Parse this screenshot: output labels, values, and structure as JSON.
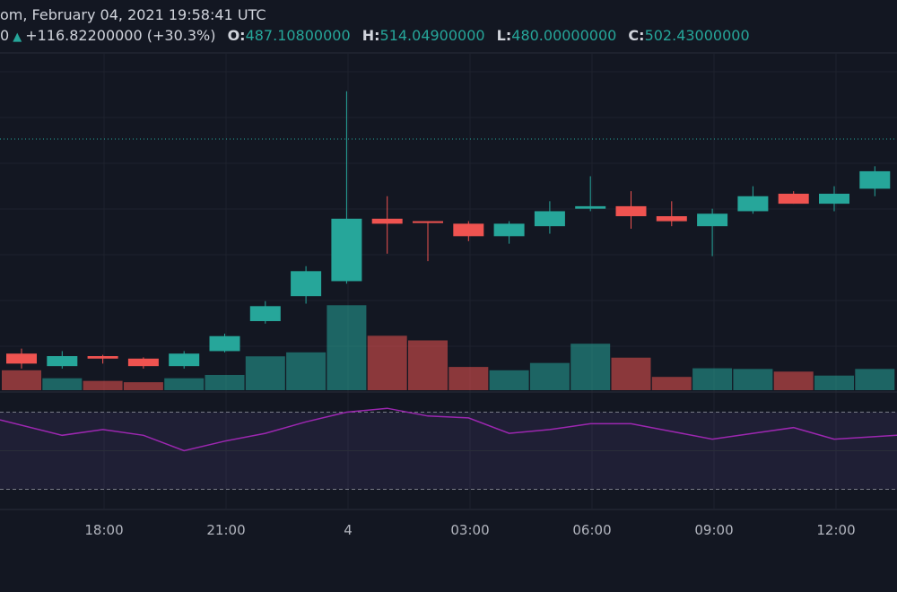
{
  "header": {
    "title_fragment": "om, February 04, 2021 19:58:41 UTC",
    "price_fragment": "0",
    "change_arrow": "▲",
    "change": "+116.82200000 (+30.3%)",
    "o_label": "O:",
    "o_value": "487.10800000",
    "h_label": "H:",
    "h_value": "514.04900000",
    "l_label": "L:",
    "l_value": "480.00000000",
    "c_label": "C:",
    "c_value": "502.43000000"
  },
  "colors": {
    "up": "#26a69a",
    "down": "#ef5350",
    "rsi": "#9c27b0",
    "background": "#131722"
  },
  "chart_data": {
    "type": "candlestick",
    "x_ticks": [
      "18:00",
      "21:00",
      "4",
      "03:00",
      "06:00",
      "09:00",
      "12:00"
    ],
    "candles": [
      {
        "o": 425,
        "h": 427,
        "l": 419,
        "c": 421
      },
      {
        "o": 420,
        "h": 426,
        "l": 419,
        "c": 424
      },
      {
        "o": 424,
        "h": 424.5,
        "l": 421,
        "c": 423
      },
      {
        "o": 423,
        "h": 423.5,
        "l": 419,
        "c": 420
      },
      {
        "o": 420,
        "h": 426,
        "l": 419,
        "c": 425
      },
      {
        "o": 426,
        "h": 433,
        "l": 425.5,
        "c": 432
      },
      {
        "o": 438,
        "h": 446,
        "l": 437,
        "c": 444
      },
      {
        "o": 448,
        "h": 460,
        "l": 445,
        "c": 458
      },
      {
        "o": 454,
        "h": 530,
        "l": 453,
        "c": 479
      },
      {
        "o": 479,
        "h": 488,
        "l": 465,
        "c": 477
      },
      {
        "o": 478,
        "h": 478,
        "l": 462,
        "c": 477.5
      },
      {
        "o": 477,
        "h": 478,
        "l": 470,
        "c": 472
      },
      {
        "o": 472,
        "h": 478,
        "l": 469,
        "c": 477
      },
      {
        "o": 476,
        "h": 486,
        "l": 473,
        "c": 482
      },
      {
        "o": 483,
        "h": 496,
        "l": 482,
        "c": 484
      },
      {
        "o": 484,
        "h": 490,
        "l": 475,
        "c": 480
      },
      {
        "o": 480,
        "h": 486,
        "l": 476,
        "c": 478
      },
      {
        "o": 476,
        "h": 483,
        "l": 464,
        "c": 481
      },
      {
        "o": 482,
        "h": 492,
        "l": 481,
        "c": 488
      },
      {
        "o": 489,
        "h": 490,
        "l": 485,
        "c": 485
      },
      {
        "o": 485,
        "h": 492,
        "l": 482,
        "c": 489
      },
      {
        "o": 491,
        "h": 500,
        "l": 488,
        "c": 498
      }
    ],
    "volumes": [
      3.0,
      1.8,
      1.4,
      1.2,
      1.8,
      2.3,
      5.1,
      5.7,
      12.8,
      8.2,
      7.5,
      3.5,
      3.0,
      4.1,
      7.0,
      4.9,
      2.0,
      3.3,
      3.2,
      2.8,
      2.2,
      3.2
    ],
    "volume_directions": [
      "down",
      "up",
      "down",
      "down",
      "up",
      "up",
      "up",
      "up",
      "up",
      "down",
      "down",
      "down",
      "up",
      "up",
      "up",
      "down",
      "down",
      "up",
      "up",
      "down",
      "up",
      "up"
    ],
    "rsi": [
      66,
      58,
      61,
      58,
      50,
      55,
      59,
      65,
      70,
      72,
      68,
      67,
      59,
      61,
      64,
      64,
      60,
      56,
      59,
      62,
      56,
      58
    ],
    "rsi_levels": [
      70,
      30
    ]
  }
}
